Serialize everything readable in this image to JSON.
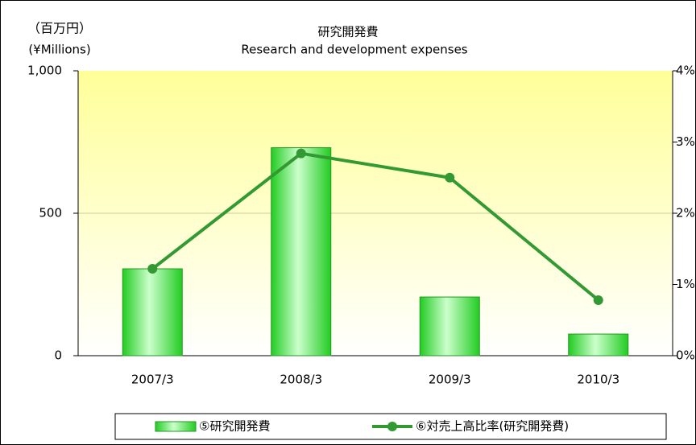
{
  "chart_data": {
    "type": "bar",
    "title": "研究開発費",
    "subtitle": "Research and development expenses",
    "y_label": "（百万円）",
    "y_label_en": "(¥Millions)",
    "categories": [
      "2007/3",
      "2008/3",
      "2009/3",
      "2010/3"
    ],
    "series": [
      {
        "name": "⑤研究開発費",
        "type": "bar",
        "color": "#33dd33",
        "values": [
          305,
          730,
          206,
          76
        ]
      },
      {
        "name": "⑥対売上高比率(研究開発費)",
        "type": "line",
        "axis": "y2",
        "color": "#339933",
        "values": [
          1.22,
          2.84,
          2.5,
          0.78
        ]
      }
    ],
    "ylim": [
      0,
      1000
    ],
    "yticks": [
      0,
      500,
      {
        "value": 1000,
        "label": "1,000"
      }
    ],
    "y2lim": [
      0,
      4
    ],
    "y2ticks": [
      {
        "value": 0,
        "label": "0%"
      },
      {
        "value": 1,
        "label": "1%"
      },
      {
        "value": 2,
        "label": "2%"
      },
      {
        "value": 3,
        "label": "3%"
      },
      {
        "value": 4,
        "label": "4%"
      }
    ],
    "grid": true,
    "legend": "bottom"
  }
}
